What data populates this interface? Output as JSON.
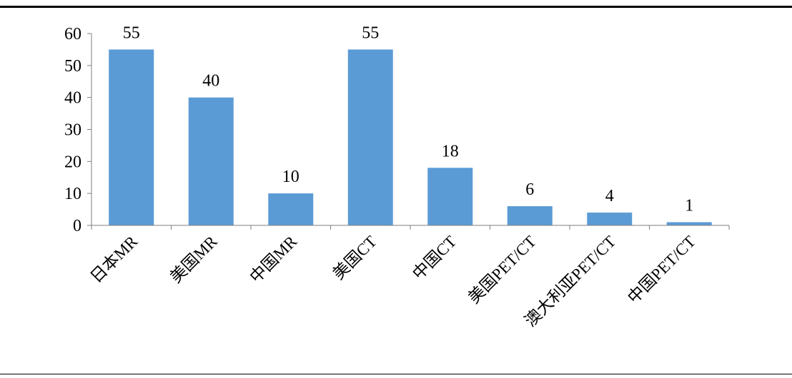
{
  "chart_data": {
    "type": "bar",
    "categories": [
      "日本MR",
      "美国MR",
      "中国MR",
      "美国CT",
      "中国CT",
      "美国PET/CT",
      "澳大利亚PET/CT",
      "中国PET/CT"
    ],
    "values": [
      55,
      40,
      10,
      55,
      18,
      6,
      4,
      1
    ],
    "data_labels": [
      "55",
      "40",
      "10",
      "55",
      "18",
      "6",
      "4",
      "1"
    ],
    "title": "",
    "xlabel": "",
    "ylabel": "",
    "ylim": [
      0,
      60
    ],
    "yticks": [
      "0",
      "10",
      "20",
      "30",
      "40",
      "50",
      "60"
    ],
    "grid": false,
    "legend": "none",
    "colors": {
      "bar": "#5B9BD5",
      "axis": "#7f7f7f",
      "text": "#000000"
    }
  }
}
